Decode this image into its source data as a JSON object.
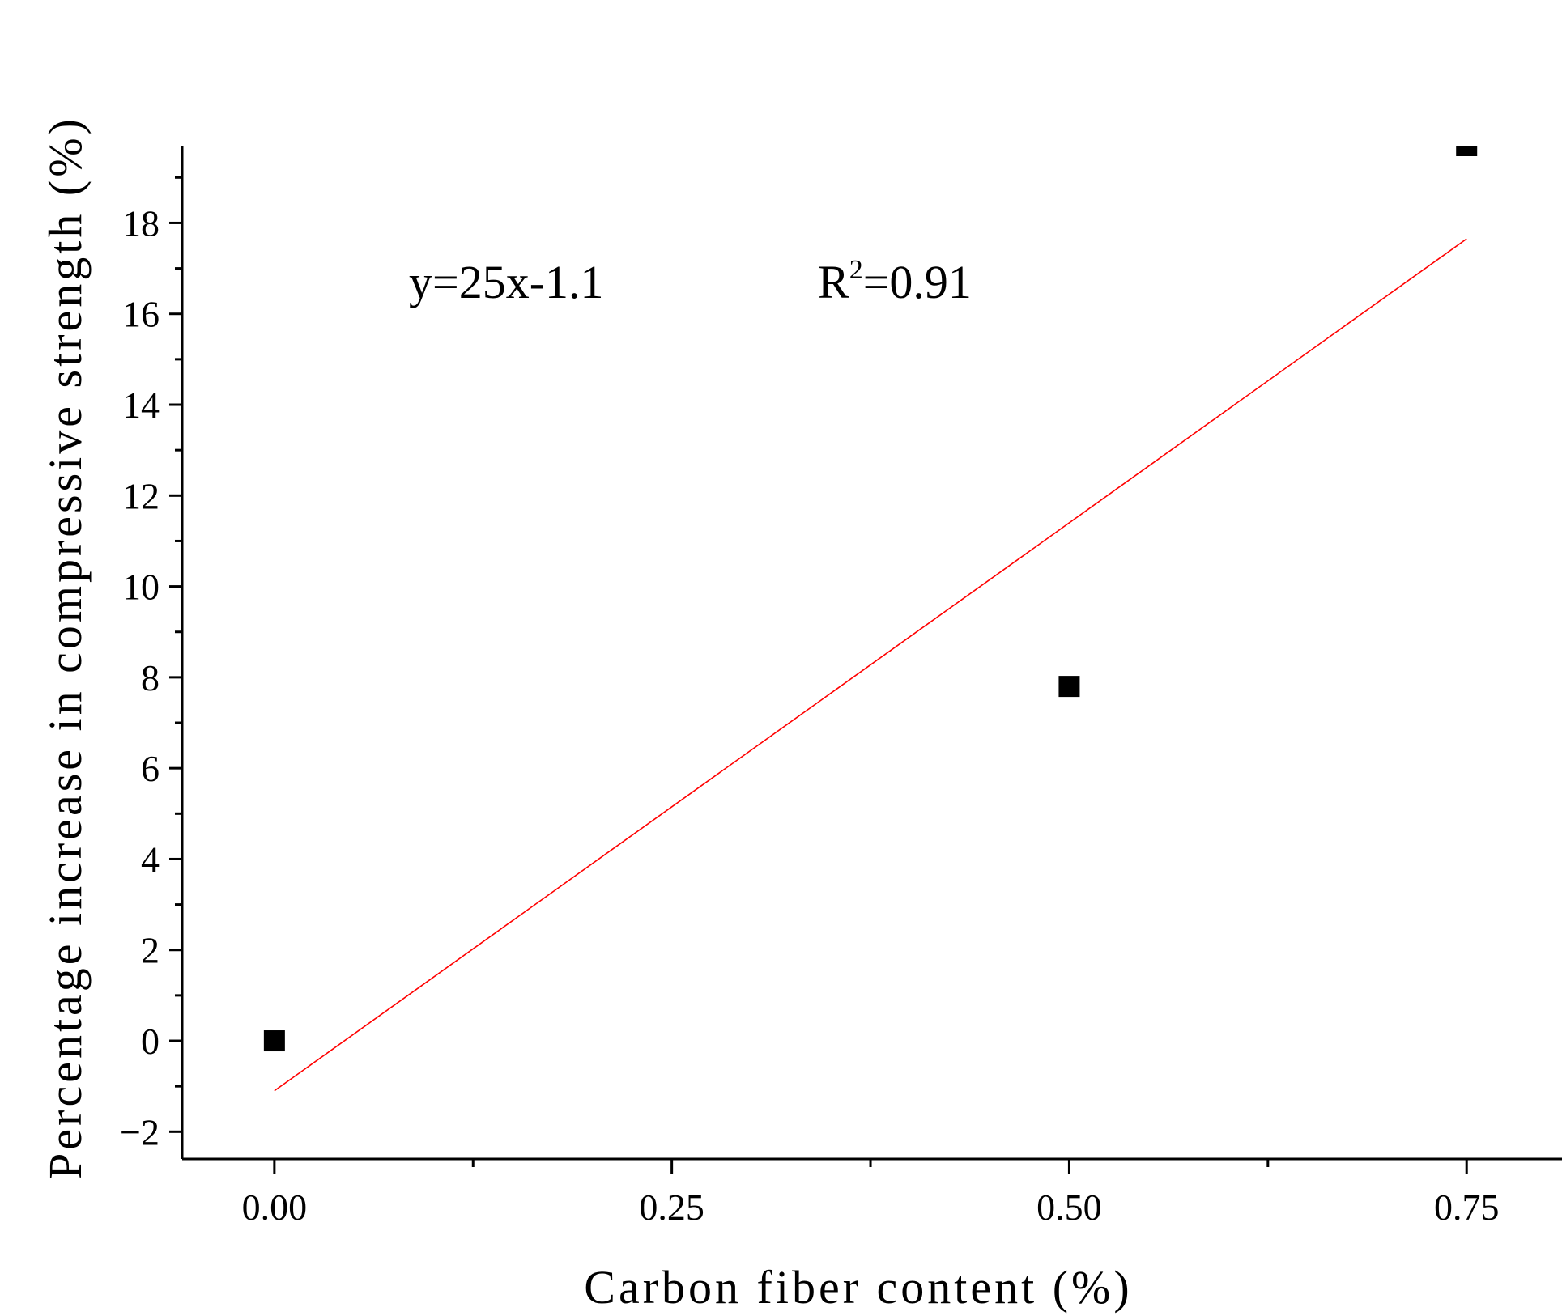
{
  "chart_data": {
    "type": "scatter",
    "xlabel": "Carbon fiber content (%)",
    "ylabel": "Percentage increase in compressive strength (%)",
    "xlim": [
      -0.058,
      0.81
    ],
    "ylim": [
      -2.6,
      19.7
    ],
    "x_ticks": [
      "0.00",
      "0.25",
      "0.50",
      "0.75"
    ],
    "y_ticks": [
      "-2",
      "0",
      "2",
      "4",
      "6",
      "8",
      "10",
      "12",
      "14",
      "16",
      "18"
    ],
    "points": [
      {
        "x": 0.0,
        "y": 0.0
      },
      {
        "x": 0.5,
        "y": 7.8
      },
      {
        "x": 0.75,
        "y": 19.7
      }
    ],
    "fit_line": {
      "slope": 25,
      "intercept": -1.1,
      "x_range": [
        0.0,
        0.75
      ],
      "color": "#ff0000"
    },
    "annotations": {
      "equation": "y=25x-1.1",
      "r2_prefix": "R",
      "r2_sup": "2",
      "r2_value": "=0.91"
    },
    "marker_color": "#000000",
    "grid": false
  }
}
